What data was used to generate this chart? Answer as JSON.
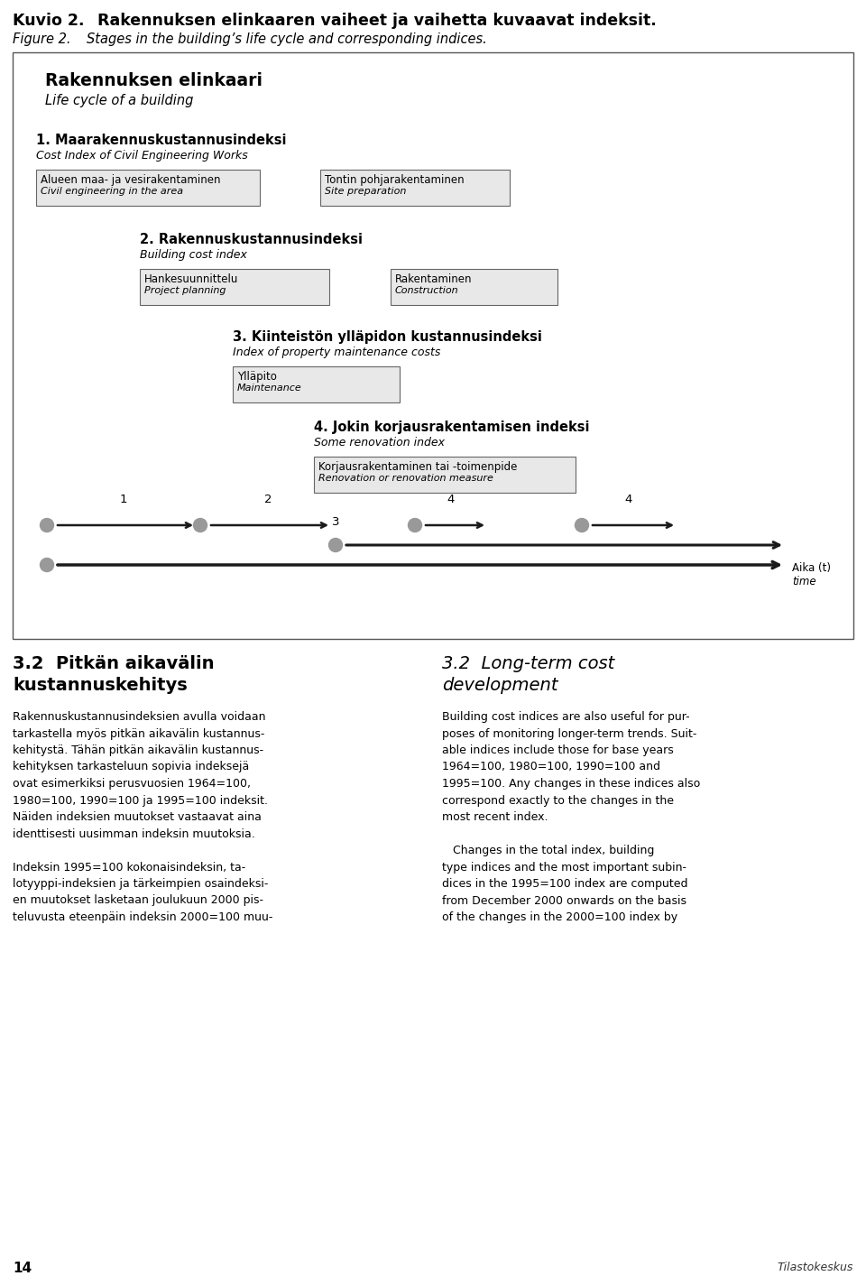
{
  "page_title_fi": "Kuvio 2.",
  "page_title_fi_rest": "Rakennuksen elinkaaren vaiheet ja vaihetta kuvaavat indeksit.",
  "page_title_en": "Figure 2.",
  "page_title_en_rest": "Stages in the building’s life cycle and corresponding indices.",
  "box_title_fi": "Rakennuksen elinkaari",
  "box_title_en": "Life cycle of a building",
  "index1_fi": "1. Maarakennuskustannusindeksi",
  "index1_en": "Cost Index of Civil Engineering Works",
  "index1_box1_fi": "Alueen maa- ja vesirakentaminen",
  "index1_box1_en": "Civil engineering in the area",
  "index1_box2_fi": "Tontin pohjarakentaminen",
  "index1_box2_en": "Site preparation",
  "index2_fi": "2. Rakennuskustannusindeksi",
  "index2_en": "Building cost index",
  "index2_box1_fi": "Hankesuunnittelu",
  "index2_box1_en": "Project planning",
  "index2_box2_fi": "Rakentaminen",
  "index2_box2_en": "Construction",
  "index3_fi": "3. Kiinteistön ylläpidon kustannusindeksi",
  "index3_en": "Index of property maintenance costs",
  "index3_box1_fi": "Ylläpito",
  "index3_box1_en": "Maintenance",
  "index4_fi": "4. Jokin korjausrakentamisen indeksi",
  "index4_en": "Some renovation index",
  "index4_box1_fi": "Korjausrakentaminen tai -toimenpide",
  "index4_box1_en": "Renovation or renovation measure",
  "time_label_fi": "Aika (t)",
  "time_label_en": "time",
  "sec32_fi_1": "3.2  Pitkän aikavälin",
  "sec32_fi_2": "kustannuskehitys",
  "sec32_en_1": "3.2  Long-term cost",
  "sec32_en_2": "development",
  "left_body": "Rakennuskustannusindeksien avulla voidaan\ntarkastella myös pitkän aikavälin kustannus-\nkehitystä. Tähän pitkän aikavälin kustannus-\nkehityksen tarkasteluun sopivia indeksejä\novat esimerkiksi perusvuosien 1964=100,\n1980=100, 1990=100 ja 1995=100 indeksit.\nNäiden indeksien muutokset vastaavat aina\nidenttisesti uusimman indeksin muutoksia.\n\nIndeksin 1995=100 kokonaisindeksin, ta-\nlotyyppi-indeksien ja tärkeimpien osaindeksi-\nen muutokset lasketaan joulukuun 2000 pis-\nteluvusta eteenpäin indeksin 2000=100 muu-",
  "right_body": "Building cost indices are also useful for pur-\nposes of monitoring longer-term trends. Suit-\nable indices include those for base years\n1964=100, 1980=100, 1990=100 and\n1995=100. Any changes in these indices also\ncorrespond exactly to the changes in the\nmost recent index.\n\n   Changes in the total index, building\ntype indices and the most important subin-\ndices in the 1995=100 index are computed\nfrom December 2000 onwards on the basis\nof the changes in the 2000=100 index by",
  "page_num": "14",
  "logo_text": "Tilastokeskus",
  "bg_color": "#ffffff",
  "box_fill": "#e8e8e8",
  "box_edge": "#666666",
  "text_color": "#000000",
  "circle_color": "#999999",
  "arrow_color": "#1a1a1a"
}
